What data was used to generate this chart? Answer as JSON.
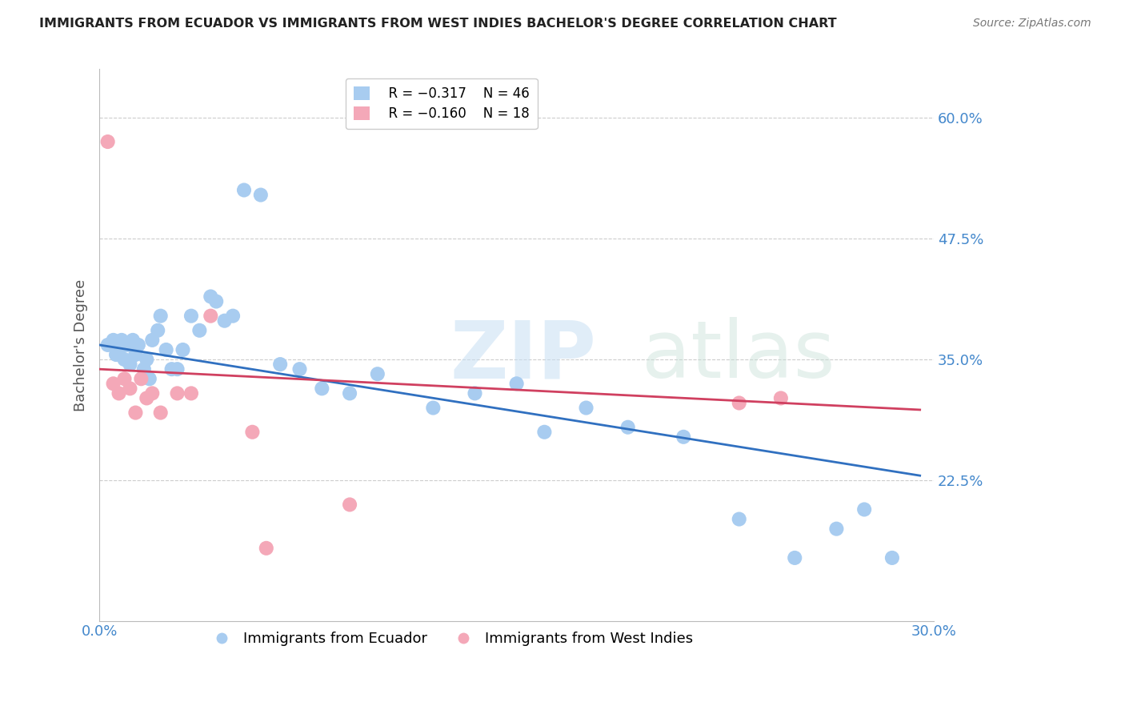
{
  "title": "IMMIGRANTS FROM ECUADOR VS IMMIGRANTS FROM WEST INDIES BACHELOR'S DEGREE CORRELATION CHART",
  "source": "Source: ZipAtlas.com",
  "xlabel_blue": "Immigrants from Ecuador",
  "xlabel_pink": "Immigrants from West Indies",
  "ylabel": "Bachelor's Degree",
  "watermark": "ZIPatlas",
  "legend_blue_R": "R = −0.317",
  "legend_blue_N": "N = 46",
  "legend_pink_R": "R = −0.160",
  "legend_pink_N": "N = 18",
  "xlim": [
    0.0,
    0.3
  ],
  "ylim": [
    0.08,
    0.65
  ],
  "yticks": [
    0.225,
    0.35,
    0.475,
    0.6
  ],
  "ytick_labels": [
    "22.5%",
    "35.0%",
    "47.5%",
    "60.0%"
  ],
  "xticks": [
    0.0,
    0.05,
    0.1,
    0.15,
    0.2,
    0.25,
    0.3
  ],
  "xtick_labels": [
    "0.0%",
    "",
    "",
    "",
    "",
    "",
    "30.0%"
  ],
  "blue_color": "#A8CCF0",
  "pink_color": "#F4A8B8",
  "trendline_blue": "#3070C0",
  "trendline_pink": "#D04060",
  "grid_color": "#CCCCCC",
  "axis_label_color": "#4488CC",
  "ylabel_color": "#555555",
  "title_color": "#222222",
  "blue_scatter_x": [
    0.003,
    0.005,
    0.006,
    0.007,
    0.008,
    0.009,
    0.01,
    0.011,
    0.012,
    0.013,
    0.014,
    0.016,
    0.017,
    0.018,
    0.019,
    0.021,
    0.022,
    0.024,
    0.026,
    0.028,
    0.03,
    0.033,
    0.036,
    0.04,
    0.042,
    0.045,
    0.048,
    0.052,
    0.058,
    0.065,
    0.072,
    0.08,
    0.09,
    0.1,
    0.12,
    0.135,
    0.15,
    0.16,
    0.175,
    0.19,
    0.21,
    0.23,
    0.25,
    0.265,
    0.275,
    0.285
  ],
  "blue_scatter_y": [
    0.365,
    0.37,
    0.355,
    0.36,
    0.37,
    0.35,
    0.365,
    0.345,
    0.37,
    0.355,
    0.365,
    0.34,
    0.35,
    0.33,
    0.37,
    0.38,
    0.395,
    0.36,
    0.34,
    0.34,
    0.36,
    0.395,
    0.38,
    0.415,
    0.41,
    0.39,
    0.395,
    0.525,
    0.52,
    0.345,
    0.34,
    0.32,
    0.315,
    0.335,
    0.3,
    0.315,
    0.325,
    0.275,
    0.3,
    0.28,
    0.27,
    0.185,
    0.145,
    0.175,
    0.195,
    0.145
  ],
  "pink_scatter_x": [
    0.003,
    0.005,
    0.007,
    0.009,
    0.011,
    0.013,
    0.015,
    0.017,
    0.019,
    0.022,
    0.028,
    0.033,
    0.04,
    0.055,
    0.06,
    0.09,
    0.23,
    0.245
  ],
  "pink_scatter_y": [
    0.575,
    0.325,
    0.315,
    0.33,
    0.32,
    0.295,
    0.33,
    0.31,
    0.315,
    0.295,
    0.315,
    0.315,
    0.395,
    0.275,
    0.155,
    0.2,
    0.305,
    0.31
  ],
  "blue_trend_x0": 0.0,
  "blue_trend_y0": 0.365,
  "blue_trend_x1": 0.295,
  "blue_trend_y1": 0.23,
  "pink_trend_x0": 0.0,
  "pink_trend_y0": 0.34,
  "pink_trend_x1": 0.295,
  "pink_trend_y1": 0.298
}
